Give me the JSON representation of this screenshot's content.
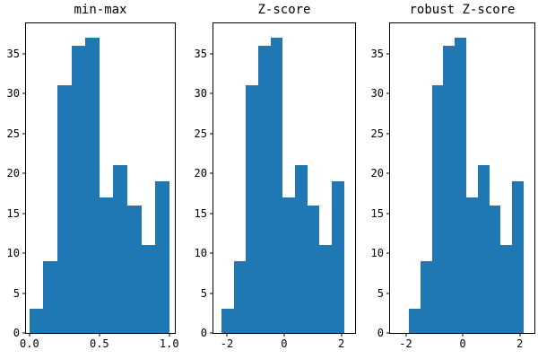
{
  "figure": {
    "background_color": "#ffffff",
    "text_color": "#000000"
  },
  "chart_data": [
    {
      "type": "bar",
      "variant": "histogram",
      "title": "min-max",
      "counts": [
        3,
        9,
        31,
        36,
        37,
        17,
        21,
        16,
        11,
        19
      ],
      "bin_start": 0.0,
      "bin_end": 1.0,
      "xlim": [
        -0.025,
        1.04
      ],
      "ylim": [
        0,
        38.8
      ],
      "x_ticks": [
        {
          "v": 0.0,
          "label": "0.0"
        },
        {
          "v": 0.5,
          "label": "0.5"
        },
        {
          "v": 1.0,
          "label": "1.0"
        }
      ],
      "y_ticks": [
        {
          "v": 0,
          "label": "0"
        },
        {
          "v": 5,
          "label": "5"
        },
        {
          "v": 10,
          "label": "10"
        },
        {
          "v": 15,
          "label": "15"
        },
        {
          "v": 20,
          "label": "20"
        },
        {
          "v": 25,
          "label": "25"
        },
        {
          "v": 30,
          "label": "30"
        },
        {
          "v": 35,
          "label": "35"
        }
      ],
      "bar_color": "#1f77b4",
      "grid": false,
      "legend": null
    },
    {
      "type": "bar",
      "variant": "histogram",
      "title": "Z-score",
      "counts": [
        3,
        9,
        31,
        36,
        37,
        17,
        21,
        16,
        11,
        19
      ],
      "bin_start": -2.19,
      "bin_end": 2.1,
      "xlim": [
        -2.47,
        2.48
      ],
      "ylim": [
        0,
        38.8
      ],
      "x_ticks": [
        {
          "v": -2,
          "label": "-2"
        },
        {
          "v": 0,
          "label": "0"
        },
        {
          "v": 2,
          "label": "2"
        }
      ],
      "y_ticks": [
        {
          "v": 0,
          "label": "0"
        },
        {
          "v": 5,
          "label": "5"
        },
        {
          "v": 10,
          "label": "10"
        },
        {
          "v": 15,
          "label": "15"
        },
        {
          "v": 20,
          "label": "20"
        },
        {
          "v": 25,
          "label": "25"
        },
        {
          "v": 30,
          "label": "30"
        },
        {
          "v": 35,
          "label": "35"
        }
      ],
      "bar_color": "#1f77b4",
      "grid": false,
      "legend": null
    },
    {
      "type": "bar",
      "variant": "histogram",
      "title": "robust Z-score",
      "counts": [
        3,
        9,
        31,
        36,
        37,
        17,
        21,
        16,
        11,
        19
      ],
      "bin_start": -1.89,
      "bin_end": 2.13,
      "xlim": [
        -2.55,
        2.51
      ],
      "ylim": [
        0,
        38.8
      ],
      "x_ticks": [
        {
          "v": -2,
          "label": "-2"
        },
        {
          "v": 0,
          "label": "0"
        },
        {
          "v": 2,
          "label": "2"
        }
      ],
      "y_ticks": [
        {
          "v": 0,
          "label": "0"
        },
        {
          "v": 5,
          "label": "5"
        },
        {
          "v": 10,
          "label": "10"
        },
        {
          "v": 15,
          "label": "15"
        },
        {
          "v": 20,
          "label": "20"
        },
        {
          "v": 25,
          "label": "25"
        },
        {
          "v": 30,
          "label": "30"
        },
        {
          "v": 35,
          "label": "35"
        }
      ],
      "bar_color": "#1f77b4",
      "grid": false,
      "legend": null
    }
  ]
}
